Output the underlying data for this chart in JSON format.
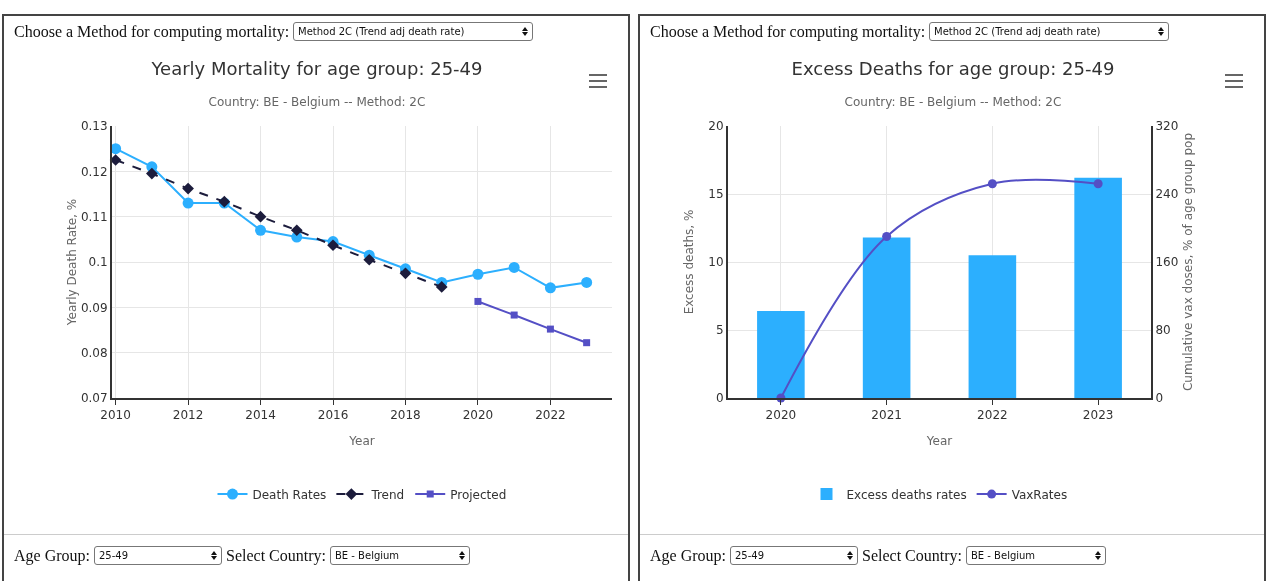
{
  "chart_data": [
    {
      "type": "line",
      "title": "Yearly Mortality for age group: 25-49",
      "subtitle": "Country: BE - Belgium -- Method: 2C",
      "xlabel": "Year",
      "ylabel": "Yearly Death Rate, %",
      "x": [
        2010,
        2011,
        2012,
        2013,
        2014,
        2015,
        2016,
        2017,
        2018,
        2019,
        2020,
        2021,
        2022,
        2023
      ],
      "series": [
        {
          "name": "Death Rates",
          "color": "#2caffe",
          "marker": "circle",
          "values": [
            0.125,
            0.121,
            0.113,
            0.113,
            0.107,
            0.1055,
            0.1045,
            0.1015,
            0.0985,
            0.0955,
            0.0973,
            0.0988,
            0.0943,
            0.0955
          ]
        },
        {
          "name": "Trend",
          "color": "#1c1c3c",
          "marker": "diamond",
          "line_style": "dashed",
          "values": [
            0.1225,
            0.1195,
            0.1162,
            0.1133,
            0.11,
            0.107,
            0.1037,
            0.1005,
            0.0975,
            0.0945,
            null,
            null,
            null,
            null
          ]
        },
        {
          "name": "Projected",
          "color": "#544fc5",
          "marker": "square",
          "values": [
            null,
            null,
            null,
            null,
            null,
            null,
            null,
            null,
            null,
            null,
            0.0913,
            0.0883,
            0.0852,
            0.0822
          ]
        }
      ],
      "xlim": [
        2009.9,
        2023.7
      ],
      "xticks": [
        2010,
        2012,
        2014,
        2016,
        2018,
        2020,
        2022
      ],
      "ylim": [
        0.07,
        0.13
      ],
      "yticks": [
        0.07,
        0.08,
        0.09,
        {
          "value": 0.1,
          "label": "0.1"
        },
        0.11,
        0.12,
        0.13
      ],
      "grid": true,
      "legend": "bottom",
      "annotations": [
        "Choose a Method for computing mortality:",
        "Method 2C (Trend adj death rate)",
        "Age Group:",
        "25-49",
        "Select Country:",
        "BE - Belgium"
      ]
    },
    {
      "type": "bar",
      "title": "Excess Deaths for age group: 25-49",
      "subtitle": "Country: BE - Belgium -- Method: 2C",
      "xlabel": "Year",
      "ylabel": "Excess deaths, %",
      "y2label": "Cumulative vax doses, % of age group pop",
      "categories": [
        "2020",
        "2021",
        "2022",
        "2023"
      ],
      "series": [
        {
          "name": "Excess deaths rates",
          "color": "#2caffe",
          "values": [
            6.4,
            11.8,
            10.5,
            16.2
          ]
        },
        {
          "name": "VaxRates",
          "type": "line",
          "axis": "y2",
          "color": "#544fc5",
          "marker": "circle",
          "values": [
            0,
            190,
            252,
            252
          ]
        }
      ],
      "ylim": [
        0,
        20
      ],
      "yticks": [
        0,
        5,
        10,
        15,
        20
      ],
      "y2lim": [
        0,
        320
      ],
      "y2ticks": [
        0,
        80,
        160,
        240,
        320
      ],
      "grid": true,
      "legend": "bottom",
      "annotations": [
        "Choose a Method for computing mortality:",
        "Method 2C (Trend adj death rate)",
        "Age Group:",
        "25-49",
        "Select Country:",
        "BE - Belgium"
      ]
    }
  ]
}
